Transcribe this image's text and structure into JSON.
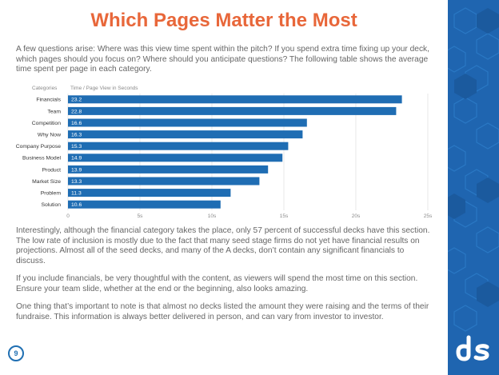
{
  "page": {
    "title": "Which Pages Matter the Most",
    "intro": "A few questions arise: Where was this view time spent within the pitch? If you spend extra time fixing up your deck, which pages should you focus on? Where should you anticipate questions? The following table shows the average time spent per page in each category.",
    "para2": "Interestingly, although the financial category takes the place, only 57 percent of successful decks have this section. The low rate of inclusion is mostly due to the fact that many seed stage firms do not yet have financial results on projections. Almost all of the seed decks, and many of the A decks, don’t contain any significant financials to discuss.",
    "para3": "If you include financials, be very thoughtful with the content, as viewers will spend the most time on this section. Ensure your team slide, whether at the end or the beginning, also looks amazing.",
    "para4": "One thing that’s important to note is that almost no decks listed the amount they were raising and the terms of their fundraise. This information is always better delivered in person, and can vary from investor to investor.",
    "page_number": "9",
    "logo_text": "ds"
  },
  "chart_data": {
    "type": "bar",
    "orientation": "horizontal",
    "category_header": "Categories",
    "value_header": "Time / Page View in Seconds",
    "categories": [
      "Financials",
      "Team",
      "Competition",
      "Why Now",
      "Company Purpose",
      "Business Model",
      "Product",
      "Market Size",
      "Problem",
      "Solution"
    ],
    "values": [
      23.2,
      22.8,
      16.6,
      16.3,
      15.3,
      14.9,
      13.9,
      13.3,
      11.3,
      10.6
    ],
    "xlim": [
      0,
      25
    ],
    "xticks": [
      "0",
      "5s",
      "10s",
      "15s",
      "20s",
      "25s"
    ],
    "bar_color": "#1f6db3",
    "grid": true
  },
  "colors": {
    "title": "#e8673a",
    "sidebar": "#1f65b0",
    "bar": "#1f6db3"
  }
}
